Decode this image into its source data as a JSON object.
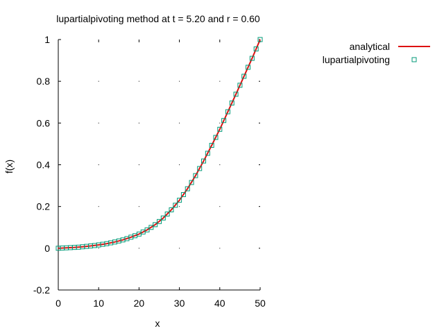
{
  "chart_data": {
    "type": "scatter",
    "title": "lupartialpivoting method at t = 5.20 and r = 0.60",
    "xlabel": "x",
    "ylabel": "f(x)",
    "xlim": [
      0,
      50
    ],
    "ylim": [
      -0.2,
      1
    ],
    "xticks": [
      "0",
      "10",
      "20",
      "30",
      "40",
      "50"
    ],
    "yticks": [
      "-0.2",
      "0",
      "0.2",
      "0.4",
      "0.6",
      "0.8",
      "1"
    ],
    "legend_position": "top-right, outside plot",
    "series": [
      {
        "name": "analytical",
        "style": "line",
        "color": "#dd1111",
        "x": [
          0,
          2,
          4,
          6,
          8,
          10,
          12,
          14,
          16,
          18,
          20,
          22,
          24,
          26,
          28,
          30,
          32,
          34,
          36,
          38,
          40,
          42,
          44,
          46,
          48,
          50
        ],
        "y": [
          0.0,
          0.002,
          0.004,
          0.007,
          0.011,
          0.016,
          0.022,
          0.03,
          0.04,
          0.053,
          0.068,
          0.088,
          0.113,
          0.145,
          0.184,
          0.23,
          0.285,
          0.348,
          0.418,
          0.493,
          0.57,
          0.654,
          0.738,
          0.824,
          0.91,
          1.0
        ]
      },
      {
        "name": "lupartialpivoting",
        "style": "markers",
        "color": "#009977",
        "x": [
          0,
          1,
          2,
          3,
          4,
          5,
          6,
          7,
          8,
          9,
          10,
          11,
          12,
          13,
          14,
          15,
          16,
          17,
          18,
          19,
          20,
          21,
          22,
          23,
          24,
          25,
          26,
          27,
          28,
          29,
          30,
          31,
          32,
          33,
          34,
          35,
          36,
          37,
          38,
          39,
          40,
          41,
          42,
          43,
          44,
          45,
          46,
          47,
          48,
          49,
          50
        ],
        "y": [
          0.0,
          0.001,
          0.002,
          0.003,
          0.004,
          0.005,
          0.007,
          0.009,
          0.011,
          0.013,
          0.016,
          0.019,
          0.022,
          0.026,
          0.03,
          0.035,
          0.04,
          0.046,
          0.053,
          0.06,
          0.068,
          0.078,
          0.088,
          0.1,
          0.113,
          0.128,
          0.145,
          0.164,
          0.184,
          0.206,
          0.23,
          0.257,
          0.285,
          0.315,
          0.348,
          0.382,
          0.418,
          0.455,
          0.493,
          0.531,
          0.57,
          0.612,
          0.654,
          0.696,
          0.738,
          0.781,
          0.824,
          0.867,
          0.91,
          0.955,
          1.0
        ]
      }
    ]
  }
}
